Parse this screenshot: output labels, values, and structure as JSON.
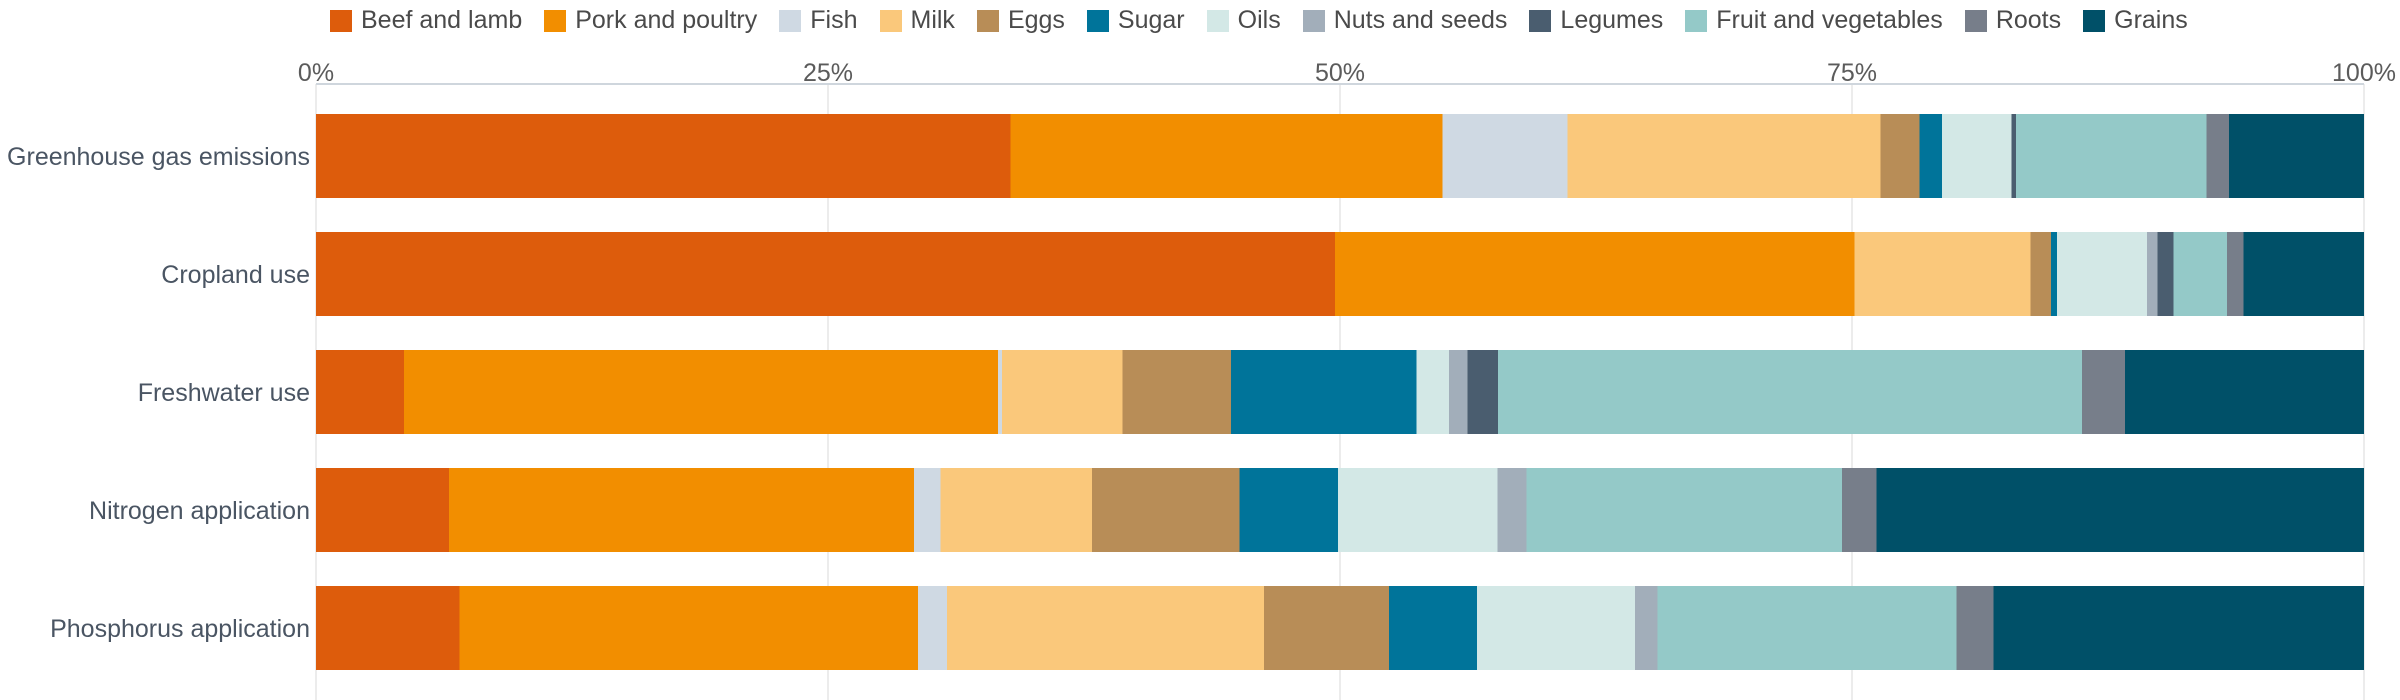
{
  "chart_data": {
    "type": "bar",
    "orientation": "horizontal",
    "stacked": true,
    "categories": [
      "Greenhouse gas emissions",
      "Cropland use",
      "Freshwater use",
      "Nitrogen application",
      "Phosphorus application"
    ],
    "x_ticks": [
      "0%",
      "25%",
      "50%",
      "75%",
      "100%"
    ],
    "xlim": [
      0,
      100
    ],
    "grid": true,
    "legend_position": "top",
    "series": [
      {
        "name": "Beef and lamb",
        "color": "#dd5c0c",
        "values": [
          33.9,
          49.8,
          4.3,
          6.5,
          7.0
        ]
      },
      {
        "name": "Pork and poultry",
        "color": "#f28e00",
        "values": [
          21.1,
          25.4,
          29.1,
          22.7,
          22.4
        ]
      },
      {
        "name": "Fish",
        "color": "#cfd9e3",
        "values": [
          6.1,
          0.0,
          0.2,
          1.3,
          1.4
        ]
      },
      {
        "name": "Milk",
        "color": "#fac87b",
        "values": [
          15.3,
          8.6,
          5.9,
          7.4,
          15.5
        ]
      },
      {
        "name": "Eggs",
        "color": "#b88d57",
        "values": [
          1.9,
          1.0,
          5.3,
          7.2,
          6.1
        ]
      },
      {
        "name": "Sugar",
        "color": "#00749a",
        "values": [
          1.1,
          0.3,
          9.1,
          4.8,
          4.3
        ]
      },
      {
        "name": "Oils",
        "color": "#d3e8e6",
        "values": [
          3.4,
          4.4,
          1.6,
          7.8,
          7.7
        ]
      },
      {
        "name": "Nuts and seeds",
        "color": "#a2aeba",
        "values": [
          0.0,
          0.5,
          0.9,
          1.4,
          1.1
        ]
      },
      {
        "name": "Legumes",
        "color": "#4a5d6f",
        "values": [
          0.2,
          0.8,
          1.5,
          0.0,
          0.0
        ]
      },
      {
        "name": "Fruit and vegetables",
        "color": "#94c9c8",
        "values": [
          9.3,
          2.6,
          28.6,
          15.4,
          14.6
        ]
      },
      {
        "name": "Roots",
        "color": "#777e8a",
        "values": [
          1.1,
          0.8,
          2.1,
          1.7,
          1.8
        ]
      },
      {
        "name": "Grains",
        "color": "#005068",
        "values": [
          6.6,
          5.9,
          11.7,
          23.8,
          18.1
        ]
      }
    ]
  }
}
